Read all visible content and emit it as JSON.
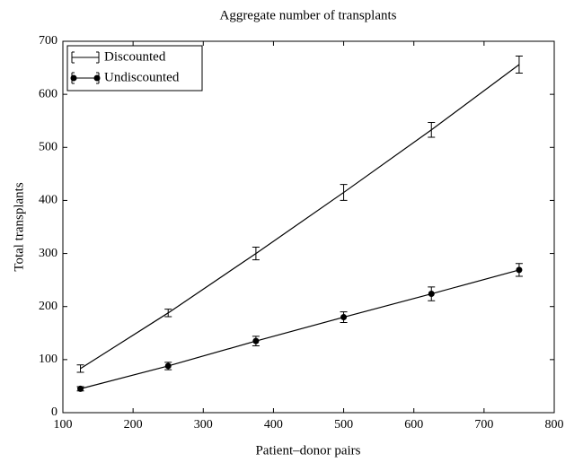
{
  "chart_data": {
    "type": "line",
    "title": "Aggregate number of transplants",
    "xlabel": "Patient–donor pairs",
    "ylabel": "Total transplants",
    "x": [
      125,
      250,
      375,
      500,
      625,
      750
    ],
    "series": [
      {
        "name": "Discounted",
        "color": "#000000",
        "marker": "none",
        "values": [
          83,
          188,
          300,
          415,
          533,
          656
        ],
        "errors": [
          7,
          7,
          12,
          15,
          14,
          16
        ]
      },
      {
        "name": "Undiscounted",
        "color": "#000000",
        "marker": "o",
        "values": [
          45,
          88,
          135,
          180,
          224,
          269
        ],
        "errors": [
          4,
          7,
          9,
          10,
          13,
          12
        ]
      }
    ],
    "xlim": [
      100,
      800
    ],
    "xticks": [
      100,
      200,
      300,
      400,
      500,
      600,
      700,
      800
    ],
    "ylim": [
      0,
      700
    ],
    "yticks": [
      0,
      100,
      200,
      300,
      400,
      500,
      600,
      700
    ],
    "grid": false,
    "legend": "upper left"
  }
}
